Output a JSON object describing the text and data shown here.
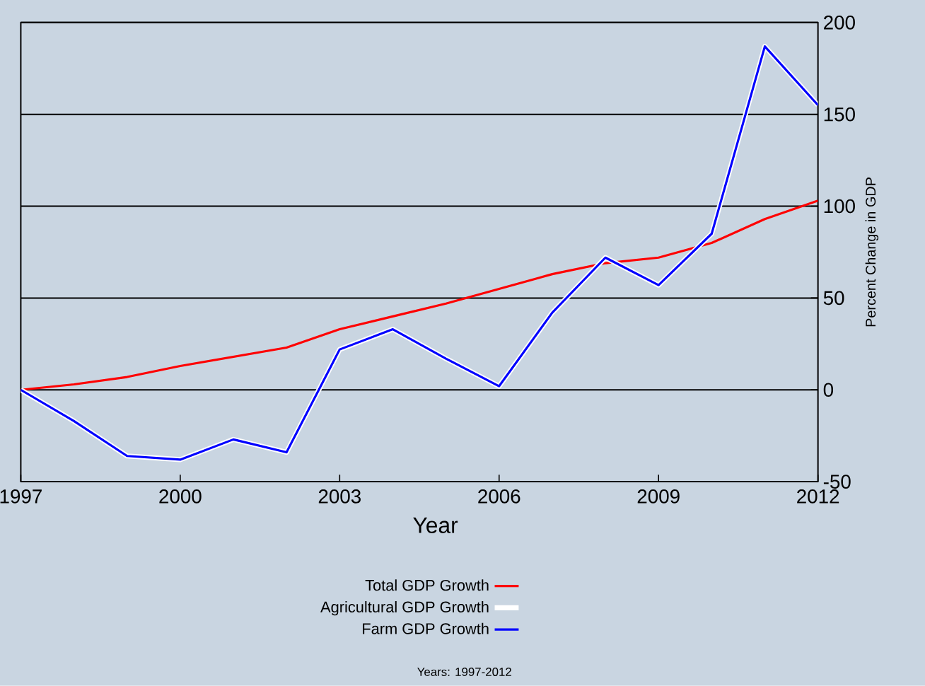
{
  "chart_data": {
    "type": "line",
    "xlabel": "Year",
    "ylabel": "Percent Change in GDP",
    "x": [
      1997,
      1998,
      1999,
      2000,
      2001,
      2002,
      2003,
      2004,
      2005,
      2006,
      2007,
      2008,
      2009,
      2010,
      2011,
      2012
    ],
    "series": [
      {
        "name": "Total GDP Growth",
        "color": "#ff0000",
        "values": [
          0,
          3,
          7,
          13,
          18,
          23,
          33,
          40,
          47,
          55,
          63,
          69,
          72,
          80,
          93,
          103
        ]
      },
      {
        "name": "Agricultural GDP Growth",
        "color": "#ffffff",
        "values": [
          0,
          -17,
          -36,
          -38,
          -27,
          -34,
          22,
          33,
          17,
          2,
          42,
          72,
          57,
          85,
          187,
          155
        ]
      },
      {
        "name": "Farm GDP Growth",
        "color": "#0000ff",
        "values": [
          0,
          -17,
          -36,
          -38,
          -27,
          -34,
          22,
          33,
          17,
          2,
          42,
          72,
          57,
          85,
          187,
          155
        ]
      }
    ],
    "xlim": [
      1997,
      2012
    ],
    "xticks": [
      1997,
      2000,
      2003,
      2006,
      2009,
      2012
    ],
    "ylim": [
      -50,
      200
    ],
    "yticks": [
      -50,
      0,
      50,
      100,
      150,
      200
    ],
    "grid": "y",
    "legend": "bottom",
    "marker": "none",
    "line_style": "solid",
    "annotations": [
      "Years: 1997-2012"
    ]
  }
}
